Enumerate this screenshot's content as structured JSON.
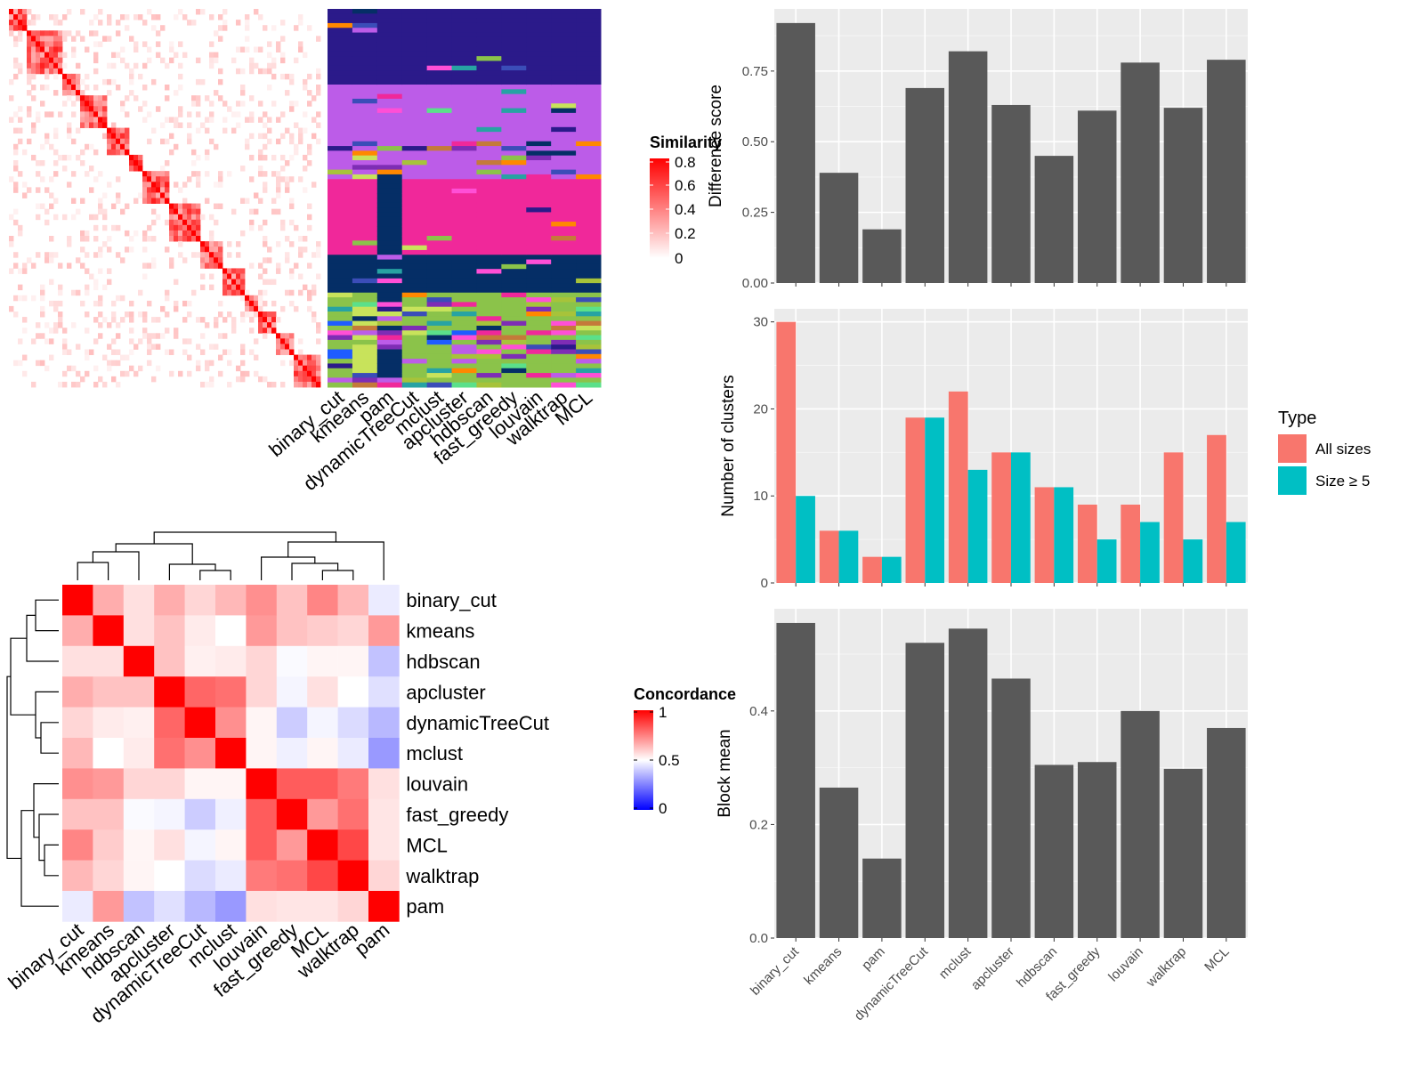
{
  "chart_data": [
    {
      "id": "similarity-heatmap",
      "type": "heatmap",
      "legend_title": "Similarity",
      "legend_ticks": [
        "0.8",
        "0.6",
        "0.4",
        "0.2",
        "0"
      ],
      "value_range": [
        0,
        0.85
      ],
      "low_color": "#ffffff",
      "high_color": "#ff0000"
    },
    {
      "id": "class-matrix",
      "type": "heatmap",
      "columns": [
        "binary_cut",
        "kmeans",
        "pam",
        "dynamicTreeCut",
        "mclust",
        "apcluster",
        "hdbscan",
        "fast_greedy",
        "louvain",
        "walktrap",
        "MCL"
      ]
    },
    {
      "id": "concordance-heatmap",
      "type": "heatmap",
      "legend_title": "Concordance",
      "legend_ticks": [
        "1",
        "0.5",
        "0"
      ],
      "colors": {
        "low": "#0000ff",
        "mid": "#ffffff",
        "high": "#ff0000"
      },
      "labels": [
        "binary_cut",
        "kmeans",
        "hdbscan",
        "apcluster",
        "dynamicTreeCut",
        "mclust",
        "louvain",
        "fast_greedy",
        "MCL",
        "walktrap",
        "pam"
      ],
      "matrix": [
        [
          1.0,
          0.66,
          0.56,
          0.66,
          0.58,
          0.64,
          0.72,
          0.62,
          0.74,
          0.64,
          0.46
        ],
        [
          0.66,
          1.0,
          0.56,
          0.62,
          0.54,
          0.5,
          0.7,
          0.62,
          0.6,
          0.58,
          0.7
        ],
        [
          0.56,
          0.56,
          1.0,
          0.62,
          0.53,
          0.54,
          0.58,
          0.49,
          0.52,
          0.52,
          0.38
        ],
        [
          0.66,
          0.62,
          0.62,
          1.0,
          0.8,
          0.78,
          0.58,
          0.48,
          0.56,
          0.5,
          0.44
        ],
        [
          0.58,
          0.54,
          0.53,
          0.8,
          1.0,
          0.72,
          0.52,
          0.4,
          0.48,
          0.43,
          0.36
        ],
        [
          0.64,
          0.5,
          0.54,
          0.78,
          0.72,
          1.0,
          0.52,
          0.47,
          0.52,
          0.46,
          0.3
        ],
        [
          0.72,
          0.7,
          0.58,
          0.58,
          0.52,
          0.52,
          1.0,
          0.82,
          0.82,
          0.76,
          0.56
        ],
        [
          0.62,
          0.62,
          0.49,
          0.48,
          0.4,
          0.47,
          0.82,
          1.0,
          0.7,
          0.78,
          0.55
        ],
        [
          0.74,
          0.6,
          0.52,
          0.56,
          0.48,
          0.52,
          0.82,
          0.7,
          1.0,
          0.86,
          0.55
        ],
        [
          0.64,
          0.58,
          0.52,
          0.5,
          0.43,
          0.46,
          0.76,
          0.78,
          0.86,
          1.0,
          0.58
        ],
        [
          0.46,
          0.7,
          0.38,
          0.44,
          0.36,
          0.3,
          0.56,
          0.55,
          0.55,
          0.58,
          1.0
        ]
      ]
    },
    {
      "id": "difference-score",
      "type": "bar",
      "categories": [
        "binary_cut",
        "kmeans",
        "pam",
        "dynamicTreeCut",
        "mclust",
        "apcluster",
        "hdbscan",
        "fast_greedy",
        "louvain",
        "walktrap",
        "MCL"
      ],
      "values": [
        0.92,
        0.39,
        0.19,
        0.69,
        0.82,
        0.63,
        0.45,
        0.61,
        0.78,
        0.62,
        0.79
      ],
      "ylabel": "Difference score",
      "ylim": [
        0,
        0.97
      ],
      "yticks": [
        0,
        0.25,
        0.5,
        0.75
      ],
      "ytick_labels": [
        "0.00",
        "0.25",
        "0.50",
        "0.75"
      ],
      "bar_color": "#595959",
      "panel_bg": "#ebebeb",
      "grid": true
    },
    {
      "id": "number-of-clusters",
      "type": "bar",
      "categories": [
        "binary_cut",
        "kmeans",
        "pam",
        "dynamicTreeCut",
        "mclust",
        "apcluster",
        "hdbscan",
        "fast_greedy",
        "louvain",
        "walktrap",
        "MCL"
      ],
      "series": [
        {
          "name": "All sizes",
          "color": "#f8766d",
          "values": [
            30,
            6,
            3,
            19,
            22,
            15,
            11,
            9,
            9,
            15,
            17
          ]
        },
        {
          "name": "Size ≥ 5",
          "color": "#00bfc4",
          "values": [
            10,
            6,
            3,
            19,
            13,
            15,
            11,
            5,
            7,
            5,
            7
          ]
        }
      ],
      "ylabel": "Number of clusters",
      "ylim": [
        0,
        31.5
      ],
      "yticks": [
        0,
        10,
        20,
        30
      ],
      "legend_title": "Type",
      "legend_position": "right",
      "panel_bg": "#ebebeb",
      "grid": true
    },
    {
      "id": "block-mean",
      "type": "bar",
      "categories": [
        "binary_cut",
        "kmeans",
        "pam",
        "dynamicTreeCut",
        "mclust",
        "apcluster",
        "hdbscan",
        "fast_greedy",
        "louvain",
        "walktrap",
        "MCL"
      ],
      "values": [
        0.555,
        0.265,
        0.14,
        0.52,
        0.545,
        0.457,
        0.305,
        0.31,
        0.4,
        0.298,
        0.37
      ],
      "ylabel": "Block mean",
      "ylim": [
        0,
        0.58
      ],
      "yticks": [
        0,
        0.2,
        0.4
      ],
      "ytick_labels": [
        "0.0",
        "0.2",
        "0.4"
      ],
      "bar_color": "#595959",
      "panel_bg": "#ebebeb",
      "grid": true
    }
  ]
}
